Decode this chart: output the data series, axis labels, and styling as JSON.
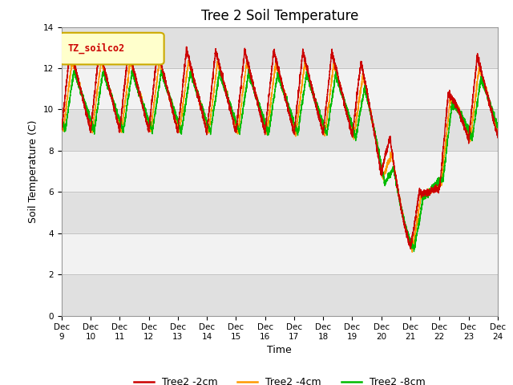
{
  "title": "Tree 2 Soil Temperature",
  "xlabel": "Time",
  "ylabel": "Soil Temperature (C)",
  "legend_label": "TZ_soilco2",
  "ylim": [
    0,
    14
  ],
  "xlim": [
    0,
    360
  ],
  "series_colors": [
    "#cc0000",
    "#ff9900",
    "#00bb00"
  ],
  "series_labels": [
    "Tree2 -2cm",
    "Tree2 -4cm",
    "Tree2 -8cm"
  ],
  "tick_labels": [
    "Dec 9",
    "Dec 10",
    "Dec 11",
    "Dec 12",
    "Dec 13",
    "Dec 14",
    "Dec 15",
    "Dec 16",
    "Dec 17",
    "Dec 18",
    "Dec 19",
    "Dec 20",
    "Dec 21",
    "Dec 22",
    "Dec 23",
    "Dec 24"
  ],
  "background_color": "#ffffff",
  "plot_bg_color": "#e0e0e0",
  "title_fontsize": 12,
  "axis_fontsize": 9,
  "tick_fontsize": 7.5,
  "legend_box_color": "#ffffcc",
  "legend_box_edge": "#ccaa00",
  "yticks": [
    0,
    2,
    4,
    6,
    8,
    10,
    12,
    14
  ],
  "band_colors": [
    "#ffffff",
    "#e0e0e0"
  ],
  "n_days": 15
}
